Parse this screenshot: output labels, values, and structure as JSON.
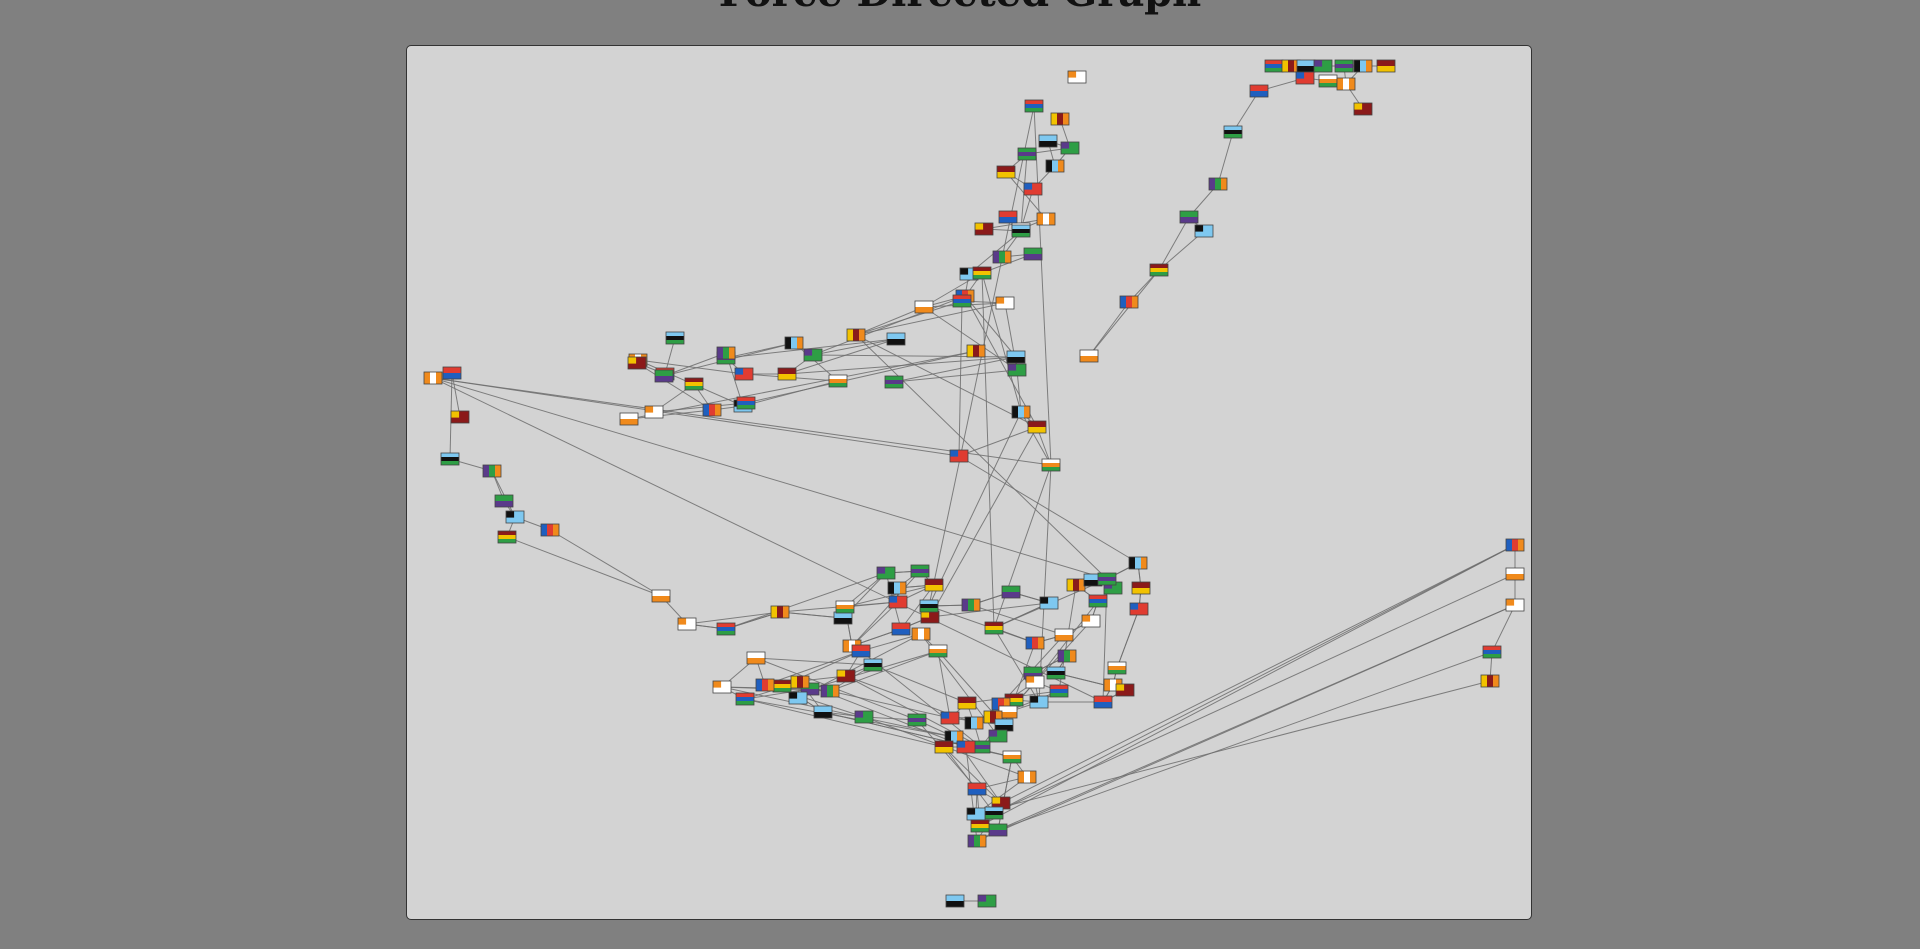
{
  "title": "Force Directed Graph",
  "flag_palette": [
    "#e03c31",
    "#1f5fbf",
    "#2e9e45",
    "#f2c200",
    "#ffffff",
    "#111111",
    "#7ec8f0",
    "#f08a1c",
    "#8b1a1a",
    "#5a3a8a"
  ]
}
